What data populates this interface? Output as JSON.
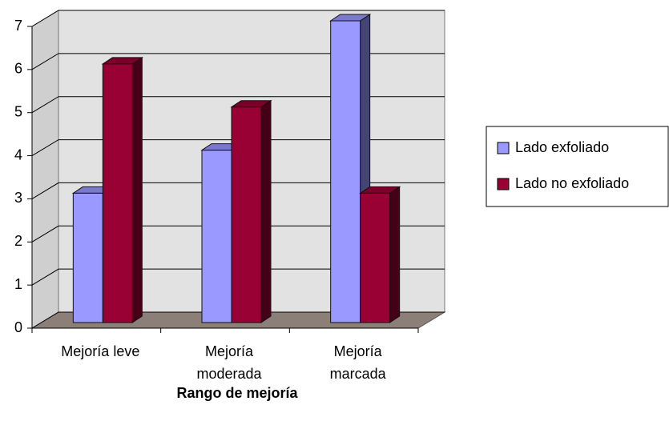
{
  "chart_data": {
    "type": "bar3d",
    "x_label": "Rango de mejoría",
    "categories": [
      [
        "Mejoría leve"
      ],
      [
        "Mejoría",
        "moderada"
      ],
      [
        "Mejoría",
        "marcada"
      ]
    ],
    "series": [
      {
        "name": "Lado exfoliado",
        "color": "#9999ff",
        "values": [
          3,
          4,
          7
        ]
      },
      {
        "name": "Lado no exfoliado",
        "color": "#990033",
        "values": [
          6,
          5,
          3
        ]
      }
    ],
    "ylim": [
      0,
      7
    ],
    "yticks": [
      0,
      1,
      2,
      3,
      4,
      5,
      6,
      7
    ],
    "grid": true,
    "legend": "right"
  }
}
